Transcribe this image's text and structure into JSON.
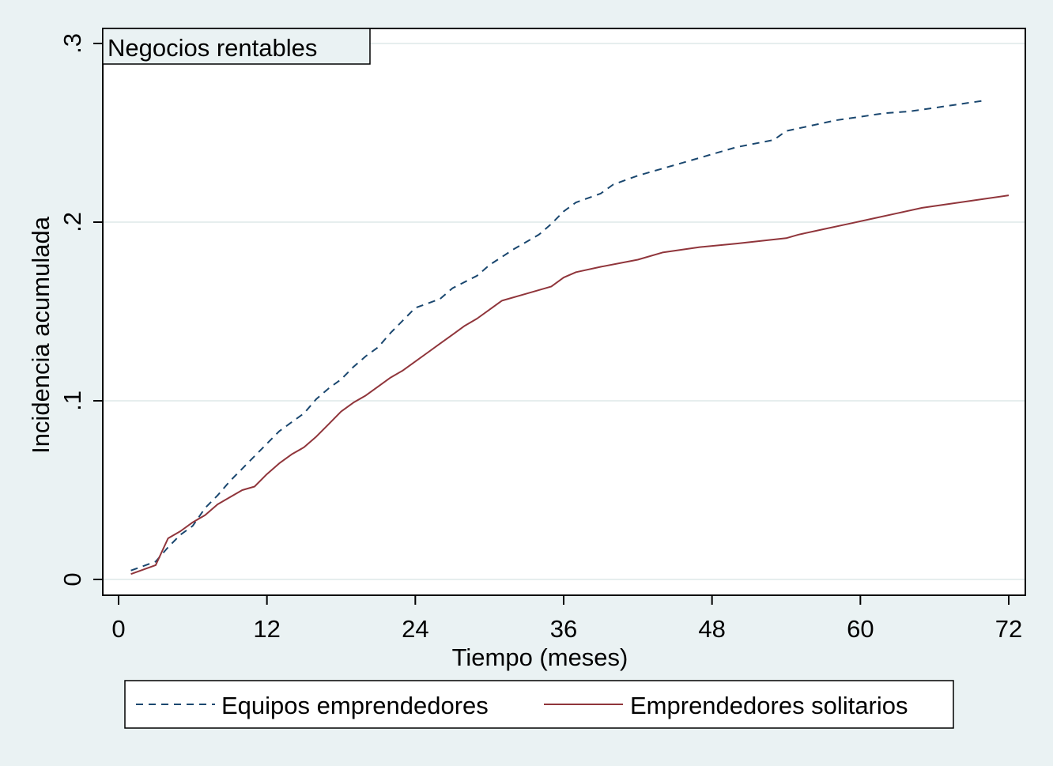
{
  "chart_data": {
    "type": "line",
    "title": "",
    "inset_label": "Negocios rentables",
    "xlabel": "Tiempo (meses)",
    "ylabel": "Incidencia acumulada",
    "xlim": [
      0,
      72
    ],
    "ylim": [
      0,
      0.3
    ],
    "x_ticks": [
      0,
      12,
      24,
      36,
      48,
      60,
      72
    ],
    "x_tick_labels": [
      "0",
      "12",
      "24",
      "36",
      "48",
      "60",
      "72"
    ],
    "y_ticks": [
      0,
      0.1,
      0.2,
      0.3
    ],
    "y_tick_labels": [
      "0",
      ".1",
      ".2",
      ".3"
    ],
    "grid": "horizontal",
    "legend_placement": "bottom",
    "series": [
      {
        "name": "Equipos emprendedores",
        "color": "#1a476f",
        "style": "dashed",
        "x": [
          1,
          3,
          4,
          5,
          6,
          7,
          8,
          9,
          10,
          11,
          12,
          13,
          14,
          15,
          16,
          17,
          18,
          19,
          20,
          21,
          22,
          23,
          24,
          26,
          27,
          29,
          30,
          32,
          34,
          35,
          36,
          37,
          39,
          40,
          42,
          44,
          46,
          48,
          50,
          53,
          54,
          56,
          58,
          60,
          62,
          64,
          66,
          68,
          70
        ],
        "y": [
          0.005,
          0.01,
          0.018,
          0.025,
          0.03,
          0.04,
          0.047,
          0.055,
          0.062,
          0.069,
          0.076,
          0.083,
          0.088,
          0.093,
          0.101,
          0.107,
          0.112,
          0.119,
          0.125,
          0.13,
          0.138,
          0.145,
          0.152,
          0.157,
          0.163,
          0.17,
          0.176,
          0.185,
          0.193,
          0.199,
          0.206,
          0.211,
          0.216,
          0.221,
          0.226,
          0.23,
          0.234,
          0.238,
          0.242,
          0.246,
          0.251,
          0.254,
          0.257,
          0.259,
          0.261,
          0.262,
          0.264,
          0.266,
          0.268
        ]
      },
      {
        "name": "Emprendedores solitarios",
        "color": "#90353b",
        "style": "solid",
        "x": [
          1,
          3,
          4,
          5,
          6,
          7,
          8,
          9,
          10,
          11,
          12,
          13,
          14,
          15,
          16,
          17,
          18,
          19,
          20,
          21,
          22,
          23,
          24,
          25,
          26,
          27,
          28,
          29,
          30,
          31,
          33,
          35,
          36,
          37,
          39,
          42,
          44,
          47,
          50,
          54,
          55,
          57,
          59,
          61,
          63,
          65,
          67,
          69,
          72
        ],
        "y": [
          0.003,
          0.008,
          0.023,
          0.027,
          0.032,
          0.036,
          0.042,
          0.046,
          0.05,
          0.052,
          0.059,
          0.065,
          0.07,
          0.074,
          0.08,
          0.087,
          0.094,
          0.099,
          0.103,
          0.108,
          0.113,
          0.117,
          0.122,
          0.127,
          0.132,
          0.137,
          0.142,
          0.146,
          0.151,
          0.156,
          0.16,
          0.164,
          0.169,
          0.172,
          0.175,
          0.179,
          0.183,
          0.186,
          0.188,
          0.191,
          0.193,
          0.196,
          0.199,
          0.202,
          0.205,
          0.208,
          0.21,
          0.212,
          0.215
        ]
      }
    ]
  }
}
